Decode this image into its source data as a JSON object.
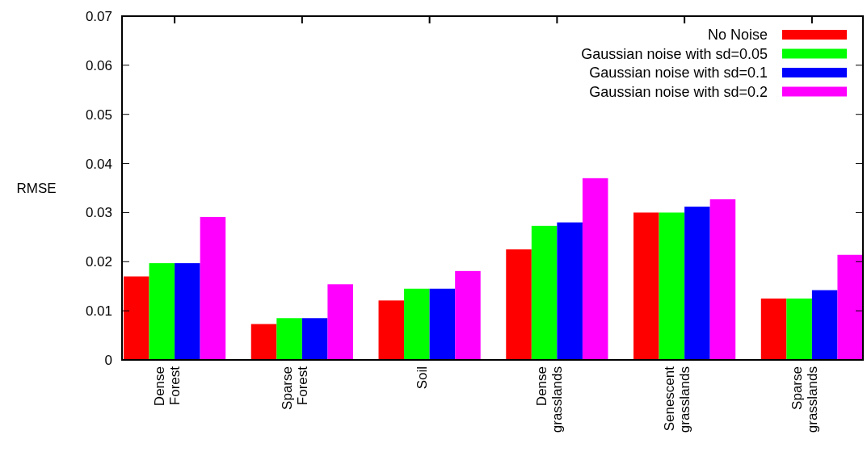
{
  "chart_data": {
    "type": "bar",
    "ylabel": "RMSE",
    "categories": [
      "Dense Forest",
      "Sparse Forest",
      "Soil",
      "Dense grasslands",
      "Senescent grasslands",
      "Sparse grasslands"
    ],
    "series": [
      {
        "name": "No Noise",
        "color": "#ff0000",
        "values": [
          0.017,
          0.0073,
          0.0121,
          0.0225,
          0.03,
          0.0125
        ]
      },
      {
        "name": "Gaussian noise with sd=0.05",
        "color": "#00ff00",
        "values": [
          0.0197,
          0.0085,
          0.0145,
          0.0273,
          0.03,
          0.0125
        ]
      },
      {
        "name": "Gaussian noise with sd=0.1",
        "color": "#0000ff",
        "values": [
          0.0197,
          0.0085,
          0.0145,
          0.028,
          0.0312,
          0.0142
        ]
      },
      {
        "name": "Gaussian noise with sd=0.2",
        "color": "#ff00ff",
        "values": [
          0.0291,
          0.0154,
          0.0181,
          0.037,
          0.0327,
          0.0214
        ]
      }
    ],
    "ylim": [
      0,
      0.07
    ],
    "yticks": [
      0,
      0.01,
      0.02,
      0.03,
      0.04,
      0.05,
      0.06,
      0.07
    ],
    "legend": "top right",
    "grid": false
  }
}
